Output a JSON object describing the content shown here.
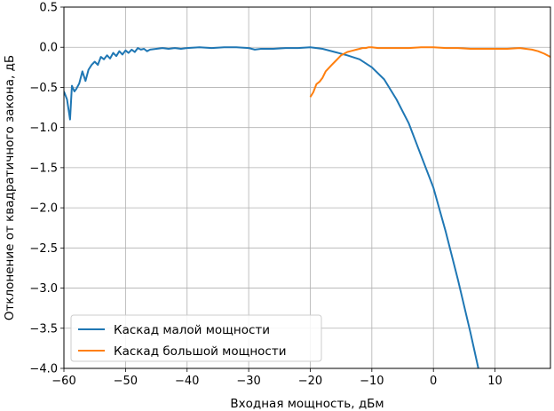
{
  "chart_data": {
    "type": "line",
    "title": "",
    "xlabel": "Входная мощность, дБм",
    "ylabel": "Отклонение от квадратичного закона, дБ",
    "xlim": [
      -60,
      19
    ],
    "ylim": [
      -4.0,
      0.5
    ],
    "xticks": [
      -60,
      -50,
      -40,
      -30,
      -20,
      -10,
      0,
      10
    ],
    "xtick_labels": [
      "−60",
      "−50",
      "−40",
      "−30",
      "−20",
      "−10",
      "0",
      "10"
    ],
    "yticks": [
      0.5,
      0.0,
      -0.5,
      -1.0,
      -1.5,
      -2.0,
      -2.5,
      -3.0,
      -3.5,
      -4.0
    ],
    "ytick_labels": [
      "0.5",
      "0.0",
      "−0.5",
      "−1.0",
      "−1.5",
      "−2.0",
      "−2.5",
      "−3.0",
      "−3.5",
      "−4.0"
    ],
    "grid": true,
    "legend_position": "lower-left",
    "series": [
      {
        "name": "Каскад малой мощности",
        "color": "#1f77b4",
        "x": [
          -60,
          -59.5,
          -59,
          -58.7,
          -58.3,
          -58,
          -57.5,
          -57,
          -56.5,
          -56,
          -55.5,
          -55,
          -54.5,
          -54,
          -53.5,
          -53,
          -52.5,
          -52,
          -51.5,
          -51,
          -50.5,
          -50,
          -49.5,
          -49,
          -48.5,
          -48,
          -47.5,
          -47,
          -46.5,
          -46,
          -45,
          -44,
          -43,
          -42,
          -41,
          -40,
          -38,
          -36,
          -34,
          -32,
          -30,
          -29,
          -28,
          -26,
          -24,
          -22,
          -20,
          -18,
          -16,
          -14,
          -12,
          -10,
          -8,
          -6,
          -4,
          -2,
          0,
          2,
          4,
          6,
          7.3
        ],
        "y": [
          -0.55,
          -0.65,
          -0.9,
          -0.48,
          -0.55,
          -0.52,
          -0.45,
          -0.3,
          -0.42,
          -0.28,
          -0.22,
          -0.18,
          -0.22,
          -0.12,
          -0.15,
          -0.1,
          -0.14,
          -0.07,
          -0.11,
          -0.05,
          -0.09,
          -0.04,
          -0.07,
          -0.03,
          -0.06,
          -0.01,
          -0.03,
          -0.02,
          -0.05,
          -0.03,
          -0.02,
          -0.01,
          -0.02,
          -0.01,
          -0.02,
          -0.01,
          0.0,
          -0.01,
          0.0,
          0.0,
          -0.01,
          -0.03,
          -0.02,
          -0.02,
          -0.01,
          -0.01,
          0.0,
          -0.02,
          -0.06,
          -0.1,
          -0.15,
          -0.25,
          -0.4,
          -0.65,
          -0.95,
          -1.35,
          -1.75,
          -2.3,
          -2.9,
          -3.55,
          -4.0
        ]
      },
      {
        "name": "Каскад большой мощности",
        "color": "#ff7f0e",
        "x": [
          -20,
          -19.5,
          -19,
          -18.5,
          -18,
          -17.5,
          -17,
          -16.5,
          -16,
          -15.5,
          -15,
          -14.5,
          -14,
          -13.5,
          -13,
          -12.5,
          -12,
          -11.5,
          -11,
          -10.5,
          -10,
          -9,
          -8,
          -6,
          -4,
          -2,
          0,
          2,
          4,
          6,
          8,
          10,
          12,
          14,
          15,
          16,
          17,
          18,
          19
        ],
        "y": [
          -0.62,
          -0.56,
          -0.46,
          -0.43,
          -0.38,
          -0.3,
          -0.26,
          -0.22,
          -0.18,
          -0.14,
          -0.1,
          -0.08,
          -0.06,
          -0.05,
          -0.04,
          -0.03,
          -0.02,
          -0.01,
          -0.01,
          0.0,
          0.0,
          -0.01,
          -0.01,
          -0.01,
          -0.01,
          0.0,
          0.0,
          -0.01,
          -0.01,
          -0.02,
          -0.02,
          -0.02,
          -0.02,
          -0.01,
          -0.02,
          -0.03,
          -0.05,
          -0.08,
          -0.12
        ]
      }
    ]
  }
}
